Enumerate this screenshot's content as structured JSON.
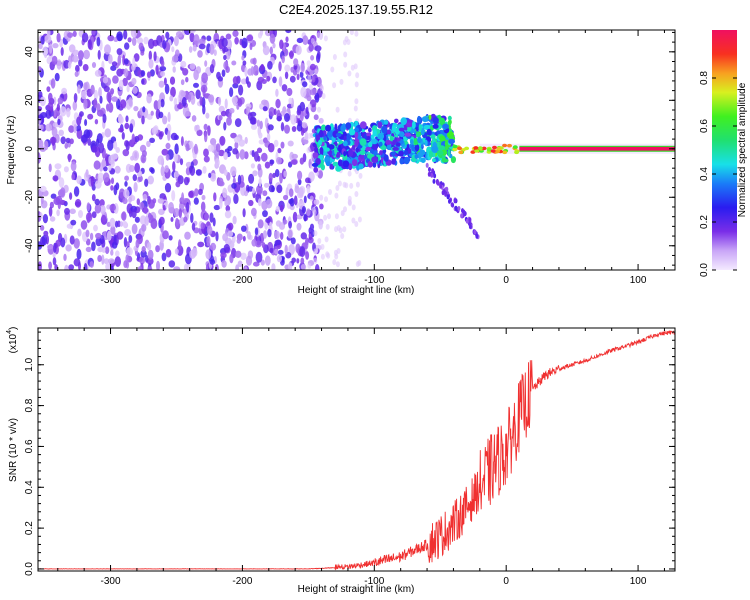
{
  "title": "C2E4.2025.137.19.55.R12",
  "colors": {
    "snr_line": "#f03030",
    "axis": "#000000"
  },
  "chart_data": [
    {
      "type": "heatmap",
      "title": "C2E4.2025.137.19.55.R12",
      "xlabel": "Height of straight line (km)",
      "ylabel": "Frequency (Hz)",
      "xlim": [
        -355,
        128
      ],
      "ylim": [
        -50,
        49
      ],
      "x_ticks": [
        -300,
        -200,
        -100,
        0,
        100
      ],
      "x_tick_labels": [
        "-300",
        "-200",
        "-100",
        "0",
        "100"
      ],
      "y_ticks": [
        -40,
        -20,
        0,
        20,
        40
      ],
      "y_tick_labels": [
        "-40",
        "-20",
        "0",
        "20",
        "40"
      ],
      "colorbar": {
        "label": "Normalized spectral amplitude",
        "range": [
          0,
          1
        ],
        "ticks": [
          0.0,
          0.2,
          0.4,
          0.6,
          0.8
        ],
        "tick_labels": [
          "0.0",
          "0.2",
          "0.4",
          "0.6",
          "0.8"
        ],
        "colormap": "rainbow (violet-blue-cyan-green-yellow-red)"
      },
      "features": [
        {
          "name": "noise region",
          "x_range": [
            -355,
            -140
          ],
          "freq_range": [
            -50,
            49
          ],
          "amplitude": 0.1
        },
        {
          "name": "transition band",
          "x_range": [
            -145,
            -40
          ],
          "freq_range": [
            -12,
            10
          ],
          "amplitude": 0.3
        },
        {
          "name": "carrier line",
          "x_range": [
            -40,
            128
          ],
          "freq": 0,
          "amplitude": 1.0
        }
      ]
    },
    {
      "type": "line",
      "xlabel": "Height of straight line (km)",
      "ylabel": "SNR (10 * v/v)",
      "y_multiplier_label": "(x10",
      "y_multiplier_exp": "4",
      "xlim": [
        -355,
        128
      ],
      "ylim": [
        -0.01,
        1.18
      ],
      "x_ticks": [
        -300,
        -200,
        -100,
        0,
        100
      ],
      "x_tick_labels": [
        "-300",
        "-200",
        "-100",
        "0",
        "100"
      ],
      "y_ticks": [
        0.0,
        0.2,
        0.4,
        0.6,
        0.8,
        1.0
      ],
      "y_tick_labels": [
        "0.0",
        "0.2",
        "0.4",
        "0.6",
        "0.8",
        "1.0"
      ],
      "series": [
        {
          "color": "#f03030",
          "x": [
            -355,
            -300,
            -250,
            -200,
            -150,
            -120,
            -100,
            -80,
            -60,
            -50,
            -40,
            -30,
            -20,
            -10,
            0,
            10,
            20,
            30,
            40,
            60,
            80,
            100,
            115,
            128
          ],
          "y": [
            0.0,
            0.0,
            0.0,
            0.0,
            0.0,
            0.01,
            0.03,
            0.06,
            0.12,
            0.16,
            0.22,
            0.3,
            0.4,
            0.5,
            0.58,
            0.75,
            0.88,
            0.95,
            0.98,
            1.02,
            1.07,
            1.11,
            1.15,
            1.16
          ]
        }
      ]
    }
  ]
}
